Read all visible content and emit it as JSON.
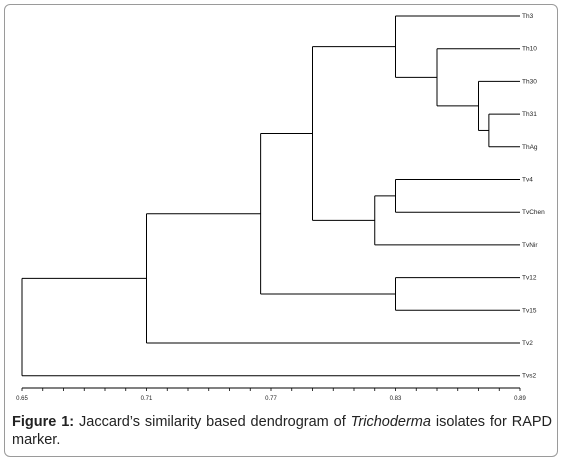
{
  "figure": {
    "caption_label": "Figure 1:",
    "caption_part1": " Jaccard’s similarity based dendrogram of ",
    "caption_italic": "Trichoderma",
    "caption_part2": " isolates for RAPD marker."
  },
  "chart_data": {
    "type": "dendrogram",
    "axis": {
      "min": 0.65,
      "max": 0.89,
      "ticks": [
        "0.65",
        "0.71",
        "0.77",
        "0.83",
        "0.89"
      ]
    },
    "leaves": [
      "Th3",
      "Th10",
      "Th30",
      "Th31",
      "ThAg",
      "Tv4",
      "TvChen",
      "TvNir",
      "Tv12",
      "Tv15",
      "Tv2",
      "Tvs2"
    ],
    "merges": [
      {
        "left": "Th31",
        "right": "ThAg",
        "similarity": 0.875
      },
      {
        "left": "Th30",
        "right": "Th31+ThAg",
        "similarity": 0.87
      },
      {
        "left": "Th10",
        "right": "Th30+Th31+ThAg",
        "similarity": 0.85
      },
      {
        "left": "Th3",
        "right": "Th10+Th30+Th31+ThAg",
        "similarity": 0.83
      },
      {
        "left": "Tv4",
        "right": "TvChen",
        "similarity": 0.83
      },
      {
        "left": "Tv4+TvChen",
        "right": "TvNir",
        "similarity": 0.82
      },
      {
        "left": "Th cluster",
        "right": "Tv4+TvChen+TvNir",
        "similarity": 0.79
      },
      {
        "left": "Tv12",
        "right": "Tv15",
        "similarity": 0.83
      },
      {
        "left": "Th/Tv cluster",
        "right": "Tv12+Tv15",
        "similarity": 0.765
      },
      {
        "left": "cluster A",
        "right": "Tv2",
        "similarity": 0.71
      },
      {
        "left": "cluster B",
        "right": "Tvs2",
        "similarity": 0.65
      }
    ]
  }
}
